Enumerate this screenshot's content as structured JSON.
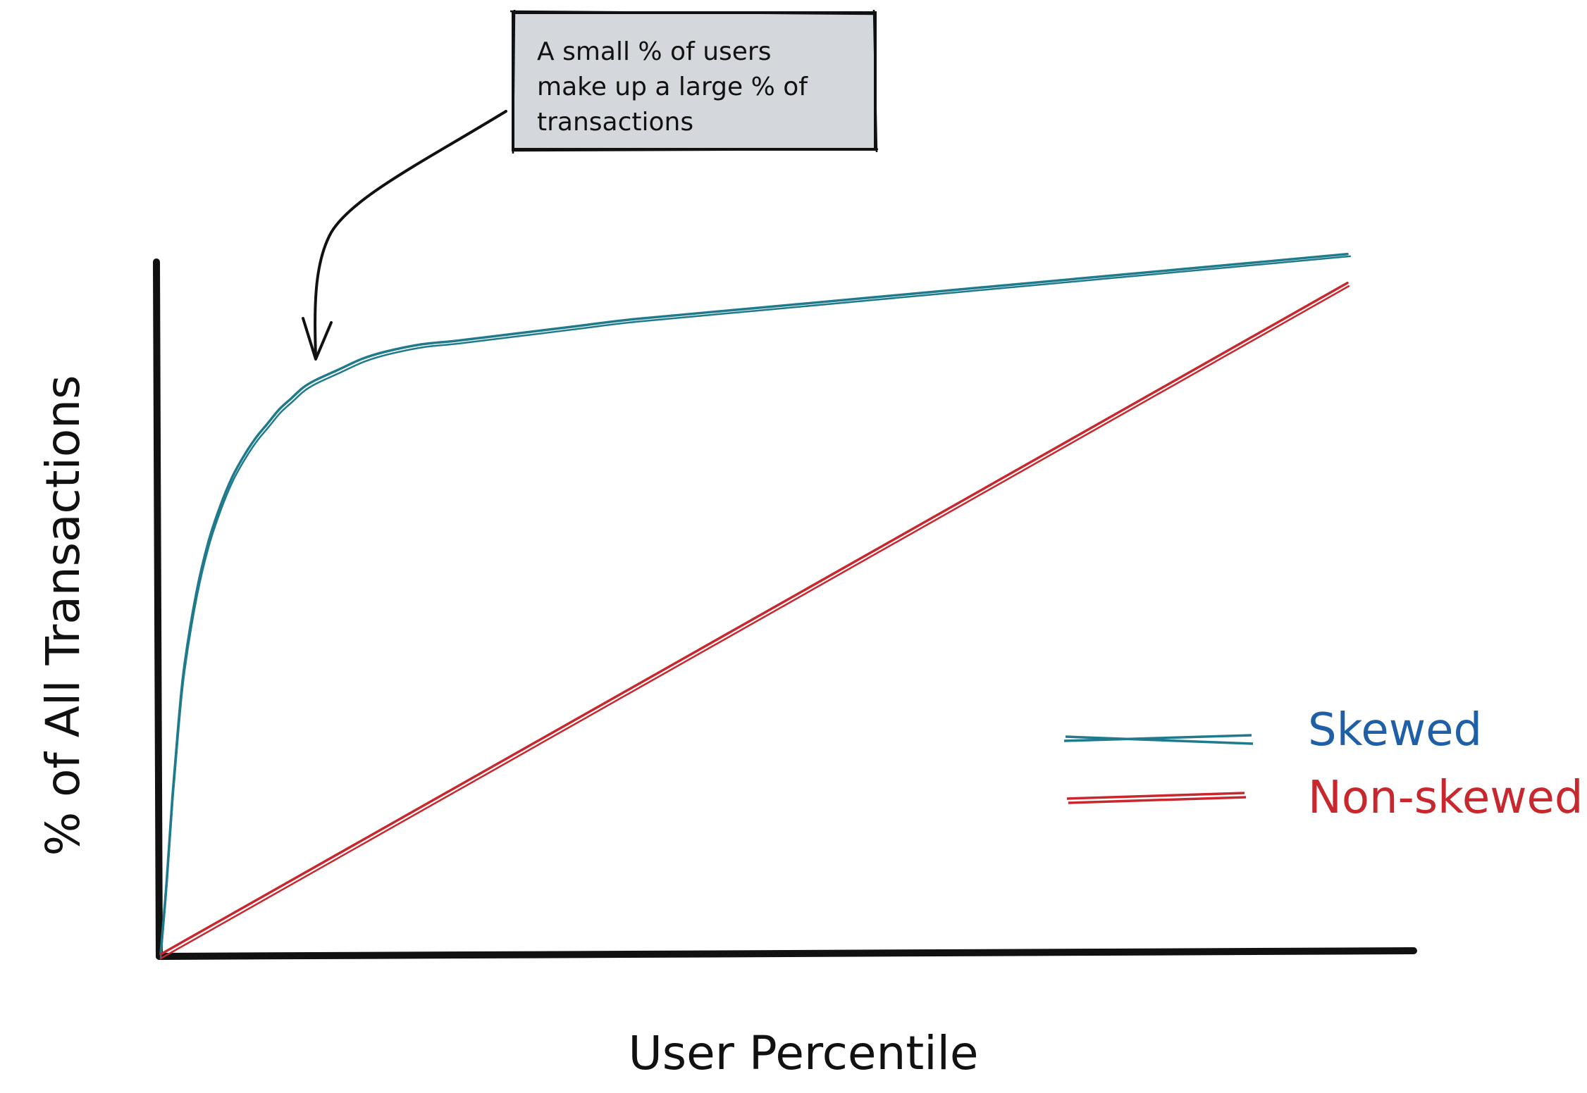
{
  "chart_data": {
    "type": "line",
    "title": "",
    "xlabel": "User Percentile",
    "ylabel": "% of All Transactions",
    "xlim": [
      0,
      100
    ],
    "ylim": [
      0,
      100
    ],
    "grid": false,
    "legend_position": "bottom-right",
    "series": [
      {
        "name": "Skewed",
        "color": "#1f7a8c",
        "legend_color": "#1f5fa8",
        "x": [
          0,
          0.5,
          1,
          1.5,
          2,
          3,
          4,
          5,
          6,
          7,
          8,
          9,
          10,
          11,
          12,
          13,
          15,
          17,
          19,
          22,
          25,
          30,
          35,
          40,
          50,
          60,
          70,
          80,
          90,
          100
        ],
        "y": [
          0,
          10,
          22,
          32,
          40,
          50,
          57,
          62,
          66,
          69,
          71.5,
          73.5,
          75.5,
          77,
          78.5,
          79.5,
          81,
          82.5,
          83.5,
          84.5,
          85,
          86,
          87,
          88,
          89.5,
          91,
          92.5,
          94,
          95.5,
          97
        ]
      },
      {
        "name": "Non-skewed",
        "color": "#c8282d",
        "legend_color": "#c8282d",
        "x": [
          0,
          100
        ],
        "y": [
          0,
          93
        ]
      }
    ],
    "annotations": [
      {
        "text_lines": [
          "A small % of users",
          "make up a large % of",
          "transactions"
        ],
        "target_x": 13,
        "target_y": 79.5
      }
    ]
  }
}
